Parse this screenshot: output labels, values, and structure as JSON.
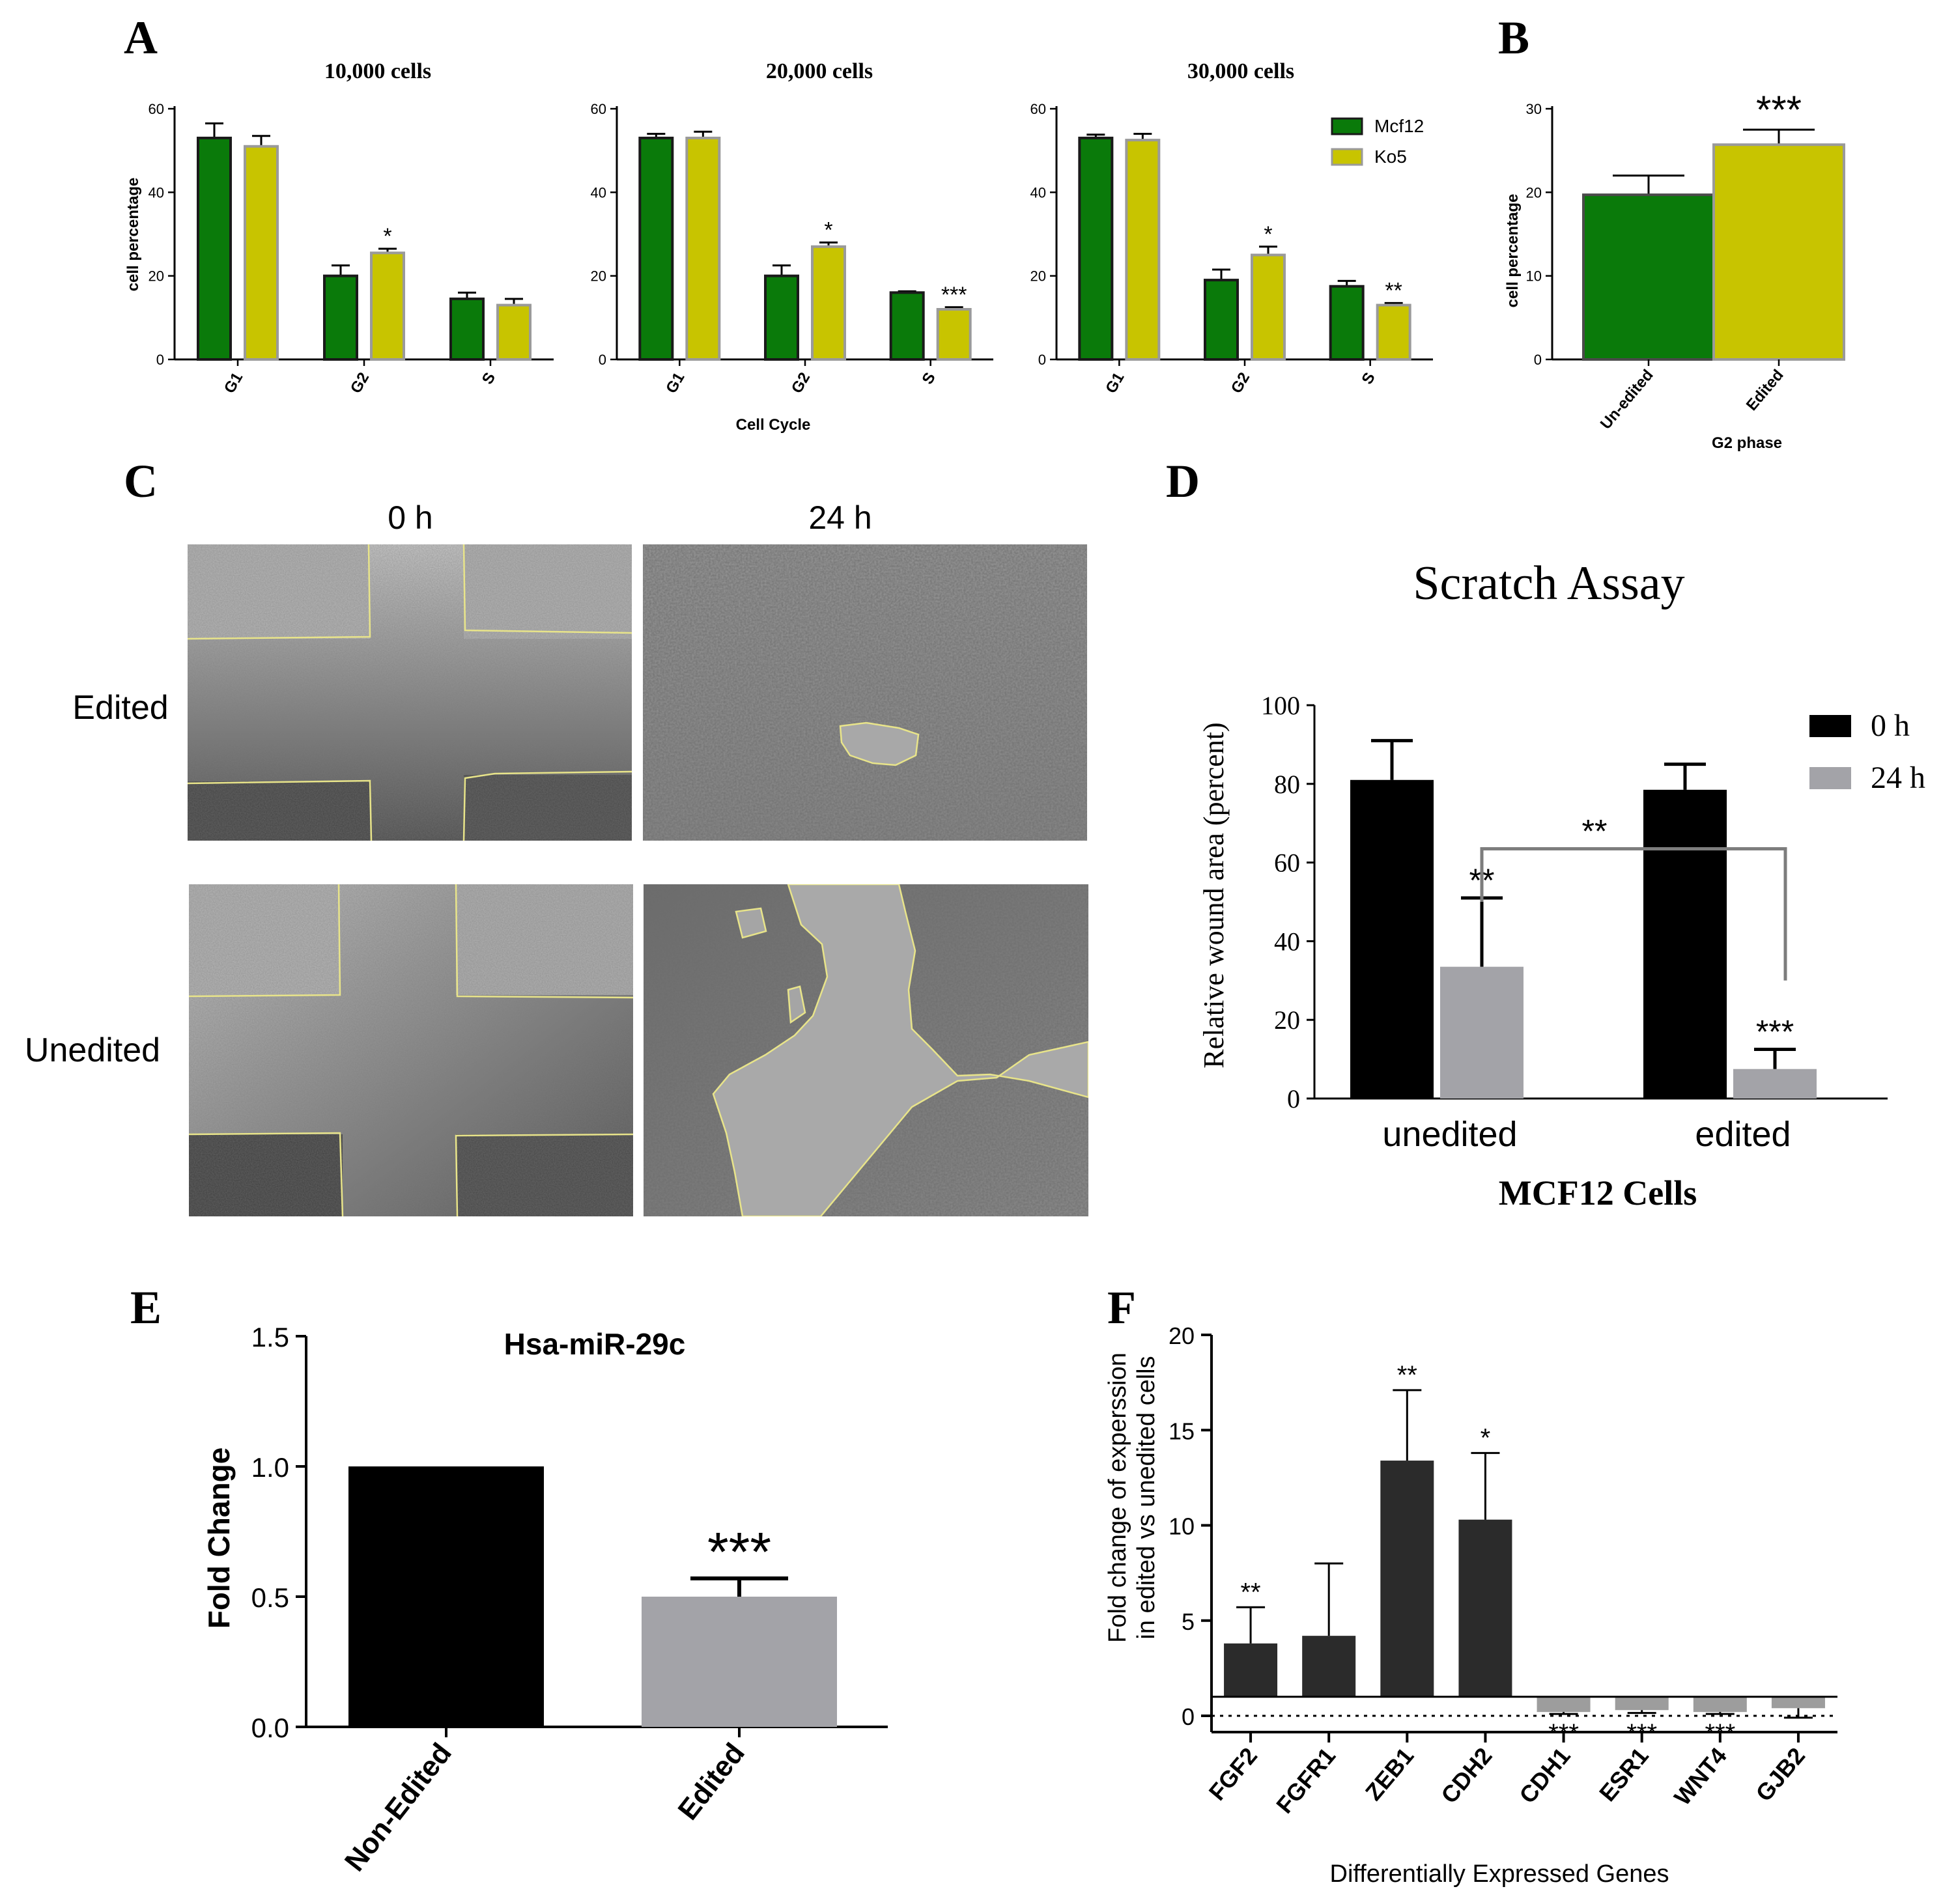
{
  "figure_label_A": "A",
  "figure_label_B": "B",
  "figure_label_C": "C",
  "figure_label_D": "D",
  "figure_label_E": "E",
  "figure_label_F": "F",
  "colors": {
    "mcf12": "#0a7a0a",
    "ko5": "#c8c400",
    "bar_outline": "#1a1a1a",
    "ko5_outline": "#9a9a9a",
    "black": "#000000",
    "gray": "#a3a3a8",
    "dark": "#2b2b2b",
    "star_gray": "#7a7a7a"
  },
  "panel_C": {
    "col_headers": [
      "0 h",
      "24 h"
    ],
    "row_labels": [
      "Edited",
      "Unedited"
    ]
  },
  "chart_data": [
    {
      "id": "A1",
      "type": "bar",
      "title": "10,000 cells",
      "categories": [
        "G1",
        "G2",
        "S"
      ],
      "series": [
        {
          "name": "Mcf12",
          "values": [
            53,
            20,
            14.5
          ],
          "errors": [
            3.5,
            2.5,
            1.5
          ]
        },
        {
          "name": "Ko5",
          "values": [
            51,
            25.5,
            13
          ],
          "errors": [
            2.5,
            1,
            1.5
          ]
        }
      ],
      "annotations": [
        {
          "category": "G2",
          "series": "Ko5",
          "text": "*"
        }
      ],
      "ylabel": "cell percentage",
      "xlabel": "",
      "ylim": [
        0,
        60
      ],
      "yticks": [
        0,
        20,
        40,
        60
      ]
    },
    {
      "id": "A2",
      "type": "bar",
      "title": "20,000 cells",
      "categories": [
        "G1",
        "G2",
        "S"
      ],
      "series": [
        {
          "name": "Mcf12",
          "values": [
            53,
            20,
            16
          ],
          "errors": [
            1,
            2.5,
            0.3
          ]
        },
        {
          "name": "Ko5",
          "values": [
            53,
            27,
            12
          ],
          "errors": [
            1.5,
            1,
            0.5
          ]
        }
      ],
      "annotations": [
        {
          "category": "G2",
          "series": "Ko5",
          "text": "*"
        },
        {
          "category": "S",
          "series": "Ko5",
          "text": "***"
        }
      ],
      "ylabel": "",
      "xlabel": "Cell Cycle",
      "ylim": [
        0,
        60
      ],
      "yticks": [
        0,
        20,
        40,
        60
      ]
    },
    {
      "id": "A3",
      "type": "bar",
      "title": "30,000 cells",
      "categories": [
        "G1",
        "G2",
        "S"
      ],
      "series": [
        {
          "name": "Mcf12",
          "values": [
            53,
            19,
            17.5
          ],
          "errors": [
            0.8,
            2.5,
            1.3
          ]
        },
        {
          "name": "Ko5",
          "values": [
            52.5,
            25,
            13
          ],
          "errors": [
            1.5,
            2,
            0.5
          ]
        }
      ],
      "annotations": [
        {
          "category": "G2",
          "series": "Ko5",
          "text": "*"
        },
        {
          "category": "S",
          "series": "Ko5",
          "text": "**"
        }
      ],
      "legend": [
        "Mcf12",
        "Ko5"
      ],
      "legend_position": "top-right",
      "ylabel": "",
      "xlabel": "",
      "ylim": [
        0,
        60
      ],
      "yticks": [
        0,
        20,
        40,
        60
      ]
    },
    {
      "id": "B",
      "type": "bar",
      "categories": [
        "Un-edited",
        "Edited"
      ],
      "values": [
        19.7,
        25.7
      ],
      "errors": [
        2.3,
        1.8
      ],
      "annotations": [
        {
          "category": "Edited",
          "text": "***"
        }
      ],
      "ylabel": "cell percentage",
      "xlabel": "G2 phase",
      "ylim": [
        0,
        30
      ],
      "yticks": [
        0,
        10,
        20,
        30
      ]
    },
    {
      "id": "D",
      "type": "bar",
      "title": "Scratch Assay",
      "categories": [
        "unedited",
        "edited"
      ],
      "series": [
        {
          "name": "0 h",
          "values": [
            81,
            78.5
          ],
          "errors": [
            10,
            6.5
          ]
        },
        {
          "name": "24 h",
          "values": [
            33.5,
            7.5
          ],
          "errors": [
            17.5,
            5
          ]
        }
      ],
      "annotations": [
        {
          "category": "unedited",
          "series": "24 h",
          "text": "**"
        },
        {
          "category": "edited",
          "series": "24 h",
          "text": "***"
        },
        {
          "bracket": "between 24 h bars",
          "text": "**"
        }
      ],
      "legend": [
        "0 h",
        "24 h"
      ],
      "legend_position": "top-right",
      "ylabel": "Relative wound area (percent)",
      "xlabel": "MCF12 Cells",
      "ylim": [
        0,
        100
      ],
      "yticks": [
        0,
        20,
        40,
        60,
        80,
        100
      ]
    },
    {
      "id": "E",
      "type": "bar",
      "title": "Hsa-miR-29c",
      "categories": [
        "Non-Edited",
        "Edited"
      ],
      "values": [
        1.0,
        0.5
      ],
      "errors": [
        0,
        0.07
      ],
      "annotations": [
        {
          "category": "Edited",
          "text": "***"
        }
      ],
      "ylabel": "Fold Change",
      "xlabel": "",
      "ylim": [
        0,
        1.5
      ],
      "yticks": [
        "0.0",
        "0.5",
        "1.0",
        "1.5"
      ]
    },
    {
      "id": "F",
      "type": "bar",
      "categories": [
        "FGF2",
        "FGFR1",
        "ZEB1",
        "CDH2",
        "CDH1",
        "ESR1",
        "WNT4",
        "GJB2"
      ],
      "values": [
        3.8,
        4.2,
        13.4,
        10.3,
        0.2,
        0.3,
        0.2,
        0.4
      ],
      "errors": [
        1.9,
        3.8,
        3.7,
        3.5,
        0.1,
        0.15,
        0.1,
        0.5
      ],
      "baseline": 1,
      "annotations": [
        {
          "category": "FGF2",
          "text": "**"
        },
        {
          "category": "ZEB1",
          "text": "**"
        },
        {
          "category": "CDH2",
          "text": "*"
        },
        {
          "category": "CDH1",
          "text": "***"
        },
        {
          "category": "ESR1",
          "text": "***"
        },
        {
          "category": "WNT4",
          "text": "***"
        }
      ],
      "ylabel_lines": [
        "Fold change of experssion",
        "in edited vs unedited cells"
      ],
      "xlabel": "Differentially Expressed Genes",
      "ylim": [
        0,
        20
      ],
      "yticks": [
        0,
        5,
        10,
        15,
        20
      ]
    }
  ]
}
